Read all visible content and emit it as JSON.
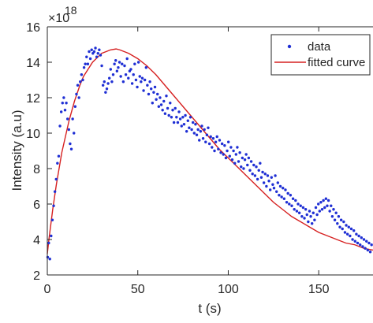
{
  "chart_data": {
    "type": "scatter",
    "xlabel": "t (s)",
    "ylabel": "Intensity (a.u)",
    "y_exponent_label": "×10",
    "y_exponent_power": "18",
    "xlim": [
      0,
      180
    ],
    "ylim": [
      2,
      16
    ],
    "x_ticks": [
      0,
      50,
      100,
      150
    ],
    "y_ticks": [
      2,
      4,
      6,
      8,
      10,
      12,
      14,
      16
    ],
    "grid": false,
    "legend_position": "top-right",
    "legend": {
      "data_label": "data",
      "curve_label": "fitted curve"
    },
    "colors": {
      "data": "#1f2fd4",
      "curve": "#d62020",
      "axis": "#262626"
    },
    "series": [
      {
        "name": "data",
        "kind": "scatter",
        "points": [
          [
            0.2,
            3.0
          ],
          [
            0.8,
            3.8
          ],
          [
            1.4,
            2.9
          ],
          [
            2.1,
            4.2
          ],
          [
            2.8,
            5.1
          ],
          [
            3.5,
            5.9
          ],
          [
            4.2,
            6.7
          ],
          [
            4.9,
            7.4
          ],
          [
            5.6,
            8.3
          ],
          [
            6.3,
            8.7
          ],
          [
            7.0,
            10.4
          ],
          [
            7.7,
            11.2
          ],
          [
            8.4,
            11.7
          ],
          [
            9.1,
            12.0
          ],
          [
            9.8,
            11.3
          ],
          [
            10.5,
            11.7
          ],
          [
            11.2,
            10.8
          ],
          [
            11.9,
            10.2
          ],
          [
            12.6,
            9.4
          ],
          [
            13.3,
            9.1
          ],
          [
            14.0,
            10.8
          ],
          [
            14.7,
            10.0
          ],
          [
            15.4,
            11.5
          ],
          [
            16.1,
            12.2
          ],
          [
            16.8,
            12.7
          ],
          [
            17.5,
            12.0
          ],
          [
            18.2,
            12.9
          ],
          [
            18.9,
            13.3
          ],
          [
            19.6,
            13.0
          ],
          [
            20.3,
            13.7
          ],
          [
            21.0,
            13.9
          ],
          [
            21.7,
            14.3
          ],
          [
            22.4,
            13.9
          ],
          [
            23.1,
            14.6
          ],
          [
            23.8,
            14.2
          ],
          [
            24.5,
            14.7
          ],
          [
            25.2,
            14.5
          ],
          [
            25.9,
            14.6
          ],
          [
            26.6,
            14.8
          ],
          [
            27.3,
            14.3
          ],
          [
            28.0,
            14.5
          ],
          [
            28.7,
            14.7
          ],
          [
            29.4,
            14.4
          ],
          [
            30.1,
            13.8
          ],
          [
            30.8,
            12.7
          ],
          [
            31.5,
            12.9
          ],
          [
            32.2,
            12.3
          ],
          [
            32.9,
            12.5
          ],
          [
            33.6,
            12.8
          ],
          [
            34.3,
            13.1
          ],
          [
            35.0,
            13.6
          ],
          [
            35.7,
            12.9
          ],
          [
            36.4,
            13.3
          ],
          [
            37.1,
            13.9
          ],
          [
            37.8,
            14.1
          ],
          [
            38.5,
            13.5
          ],
          [
            39.2,
            13.7
          ],
          [
            39.9,
            14.0
          ],
          [
            40.6,
            13.2
          ],
          [
            41.3,
            13.9
          ],
          [
            42.0,
            12.9
          ],
          [
            42.7,
            13.8
          ],
          [
            43.4,
            13.3
          ],
          [
            44.1,
            14.2
          ],
          [
            44.8,
            13.1
          ],
          [
            45.5,
            13.5
          ],
          [
            46.2,
            13.6
          ],
          [
            46.9,
            12.8
          ],
          [
            47.6,
            13.3
          ],
          [
            48.3,
            13.9
          ],
          [
            49.0,
            13.0
          ],
          [
            49.7,
            12.6
          ],
          [
            50.4,
            14.0
          ],
          [
            51.1,
            13.2
          ],
          [
            51.8,
            12.9
          ],
          [
            52.5,
            13.1
          ],
          [
            53.2,
            12.4
          ],
          [
            53.9,
            13.0
          ],
          [
            54.6,
            13.7
          ],
          [
            55.3,
            12.7
          ],
          [
            56.0,
            12.2
          ],
          [
            56.7,
            12.9
          ],
          [
            57.4,
            12.5
          ],
          [
            58.1,
            11.7
          ],
          [
            58.8,
            12.3
          ],
          [
            59.5,
            12.6
          ],
          [
            60.2,
            11.9
          ],
          [
            60.9,
            12.2
          ],
          [
            61.6,
            11.5
          ],
          [
            62.3,
            12.0
          ],
          [
            63.0,
            11.6
          ],
          [
            63.7,
            11.3
          ],
          [
            64.4,
            11.8
          ],
          [
            65.1,
            11.1
          ],
          [
            65.8,
            12.1
          ],
          [
            66.5,
            11.4
          ],
          [
            67.2,
            11.0
          ],
          [
            67.9,
            11.7
          ],
          [
            68.6,
            10.9
          ],
          [
            69.3,
            11.3
          ],
          [
            70.0,
            10.6
          ],
          [
            70.7,
            11.4
          ],
          [
            71.4,
            10.9
          ],
          [
            72.1,
            10.6
          ],
          [
            72.8,
            11.2
          ],
          [
            73.5,
            10.8
          ],
          [
            74.2,
            10.4
          ],
          [
            74.9,
            10.9
          ],
          [
            75.6,
            10.5
          ],
          [
            76.3,
            11.0
          ],
          [
            77.0,
            10.1
          ],
          [
            77.7,
            10.7
          ],
          [
            78.4,
            10.3
          ],
          [
            79.1,
            10.9
          ],
          [
            79.8,
            10.2
          ],
          [
            80.5,
            10.6
          ],
          [
            81.2,
            10.0
          ],
          [
            81.9,
            10.5
          ],
          [
            82.6,
            9.9
          ],
          [
            83.3,
            10.2
          ],
          [
            84.0,
            9.6
          ],
          [
            84.7,
            10.1
          ],
          [
            85.4,
            10.4
          ],
          [
            86.1,
            9.7
          ],
          [
            86.8,
            10.2
          ],
          [
            87.5,
            9.5
          ],
          [
            88.2,
            9.9
          ],
          [
            88.9,
            10.3
          ],
          [
            89.6,
            9.4
          ],
          [
            90.3,
            9.8
          ],
          [
            91.0,
            9.2
          ],
          [
            91.7,
            9.7
          ],
          [
            92.4,
            9.0
          ],
          [
            93.1,
            9.5
          ],
          [
            93.8,
            9.8
          ],
          [
            94.5,
            9.1
          ],
          [
            95.2,
            9.6
          ],
          [
            95.9,
            8.9
          ],
          [
            96.6,
            9.4
          ],
          [
            97.3,
            8.8
          ],
          [
            98.0,
            9.3
          ],
          [
            98.7,
            8.6
          ],
          [
            99.4,
            9.0
          ],
          [
            100.1,
            9.5
          ],
          [
            100.8,
            8.7
          ],
          [
            101.5,
            9.2
          ],
          [
            102.2,
            8.5
          ],
          [
            102.9,
            9.0
          ],
          [
            103.6,
            8.3
          ],
          [
            104.3,
            8.8
          ],
          [
            105.0,
            9.2
          ],
          [
            105.7,
            8.4
          ],
          [
            106.4,
            8.9
          ],
          [
            107.1,
            8.1
          ],
          [
            107.8,
            8.6
          ],
          [
            108.5,
            8.0
          ],
          [
            109.2,
            8.5
          ],
          [
            109.9,
            8.8
          ],
          [
            110.6,
            8.2
          ],
          [
            111.3,
            8.6
          ],
          [
            112.0,
            7.9
          ],
          [
            112.7,
            8.4
          ],
          [
            113.4,
            7.7
          ],
          [
            114.1,
            8.2
          ],
          [
            114.8,
            7.6
          ],
          [
            115.5,
            8.1
          ],
          [
            116.2,
            7.4
          ],
          [
            116.9,
            7.9
          ],
          [
            117.6,
            8.3
          ],
          [
            118.3,
            7.5
          ],
          [
            119.0,
            7.8
          ],
          [
            119.7,
            7.2
          ],
          [
            120.4,
            7.7
          ],
          [
            121.1,
            7.0
          ],
          [
            121.8,
            7.6
          ],
          [
            122.5,
            7.3
          ],
          [
            123.2,
            6.8
          ],
          [
            123.9,
            7.5
          ],
          [
            124.6,
            7.1
          ],
          [
            125.3,
            6.9
          ],
          [
            126.0,
            7.6
          ],
          [
            126.7,
            6.7
          ],
          [
            127.4,
            7.2
          ],
          [
            128.1,
            6.5
          ],
          [
            128.8,
            7.0
          ],
          [
            129.5,
            6.4
          ],
          [
            130.2,
            6.9
          ],
          [
            130.9,
            6.3
          ],
          [
            131.6,
            6.8
          ],
          [
            132.3,
            6.1
          ],
          [
            133.0,
            6.6
          ],
          [
            133.7,
            6.0
          ],
          [
            134.4,
            6.5
          ],
          [
            135.1,
            5.9
          ],
          [
            135.8,
            6.3
          ],
          [
            136.5,
            5.7
          ],
          [
            137.2,
            6.2
          ],
          [
            137.9,
            5.6
          ],
          [
            138.6,
            6.0
          ],
          [
            139.3,
            5.5
          ],
          [
            140.0,
            5.9
          ],
          [
            140.7,
            5.3
          ],
          [
            141.4,
            5.8
          ],
          [
            142.1,
            5.2
          ],
          [
            142.8,
            5.7
          ],
          [
            143.5,
            5.4
          ],
          [
            144.2,
            5.0
          ],
          [
            144.9,
            5.6
          ],
          [
            145.6,
            5.3
          ],
          [
            146.3,
            4.9
          ],
          [
            147.0,
            5.5
          ],
          [
            147.7,
            5.1
          ],
          [
            148.4,
            5.8
          ],
          [
            149.1,
            5.4
          ],
          [
            149.8,
            6.0
          ],
          [
            150.5,
            5.6
          ],
          [
            151.2,
            6.1
          ],
          [
            151.9,
            5.7
          ],
          [
            152.6,
            6.2
          ],
          [
            153.3,
            5.8
          ],
          [
            154.0,
            6.3
          ],
          [
            154.7,
            5.9
          ],
          [
            155.4,
            6.2
          ],
          [
            156.1,
            5.6
          ],
          [
            156.8,
            5.9
          ],
          [
            157.5,
            5.3
          ],
          [
            158.2,
            5.7
          ],
          [
            158.9,
            5.1
          ],
          [
            159.6,
            5.5
          ],
          [
            160.3,
            4.9
          ],
          [
            161.0,
            5.3
          ],
          [
            161.7,
            4.7
          ],
          [
            162.4,
            5.1
          ],
          [
            163.1,
            4.6
          ],
          [
            163.8,
            5.0
          ],
          [
            164.5,
            4.4
          ],
          [
            165.2,
            4.8
          ],
          [
            165.9,
            4.3
          ],
          [
            166.6,
            4.7
          ],
          [
            167.3,
            4.2
          ],
          [
            168.0,
            4.6
          ],
          [
            168.7,
            4.0
          ],
          [
            169.4,
            4.5
          ],
          [
            170.1,
            3.9
          ],
          [
            170.8,
            4.3
          ],
          [
            171.5,
            3.8
          ],
          [
            172.2,
            4.2
          ],
          [
            172.9,
            3.7
          ],
          [
            173.6,
            4.1
          ],
          [
            174.3,
            3.6
          ],
          [
            175.0,
            4.0
          ],
          [
            175.7,
            3.5
          ],
          [
            176.4,
            3.9
          ],
          [
            177.1,
            3.4
          ],
          [
            177.8,
            3.8
          ],
          [
            178.5,
            3.3
          ],
          [
            179.2,
            3.7
          ]
        ]
      },
      {
        "name": "fitted curve",
        "kind": "line",
        "points": [
          [
            0,
            3.2
          ],
          [
            1,
            4.1
          ],
          [
            2,
            4.9
          ],
          [
            3,
            5.7
          ],
          [
            5,
            7.1
          ],
          [
            8,
            8.9
          ],
          [
            10,
            9.8
          ],
          [
            12,
            10.7
          ],
          [
            15,
            11.8
          ],
          [
            18,
            12.7
          ],
          [
            20,
            13.2
          ],
          [
            25,
            14.0
          ],
          [
            30,
            14.5
          ],
          [
            35,
            14.7
          ],
          [
            38,
            14.75
          ],
          [
            40,
            14.7
          ],
          [
            45,
            14.5
          ],
          [
            50,
            14.2
          ],
          [
            55,
            13.8
          ],
          [
            60,
            13.3
          ],
          [
            65,
            12.7
          ],
          [
            70,
            12.1
          ],
          [
            75,
            11.5
          ],
          [
            80,
            10.9
          ],
          [
            85,
            10.3
          ],
          [
            90,
            9.7
          ],
          [
            95,
            9.1
          ],
          [
            100,
            8.6
          ],
          [
            105,
            8.1
          ],
          [
            110,
            7.6
          ],
          [
            115,
            7.1
          ],
          [
            120,
            6.6
          ],
          [
            125,
            6.1
          ],
          [
            130,
            5.7
          ],
          [
            135,
            5.3
          ],
          [
            140,
            5.0
          ],
          [
            145,
            4.7
          ],
          [
            150,
            4.4
          ],
          [
            155,
            4.2
          ],
          [
            160,
            4.0
          ],
          [
            165,
            3.8
          ],
          [
            170,
            3.7
          ],
          [
            175,
            3.5
          ],
          [
            180,
            3.4
          ]
        ]
      }
    ]
  }
}
